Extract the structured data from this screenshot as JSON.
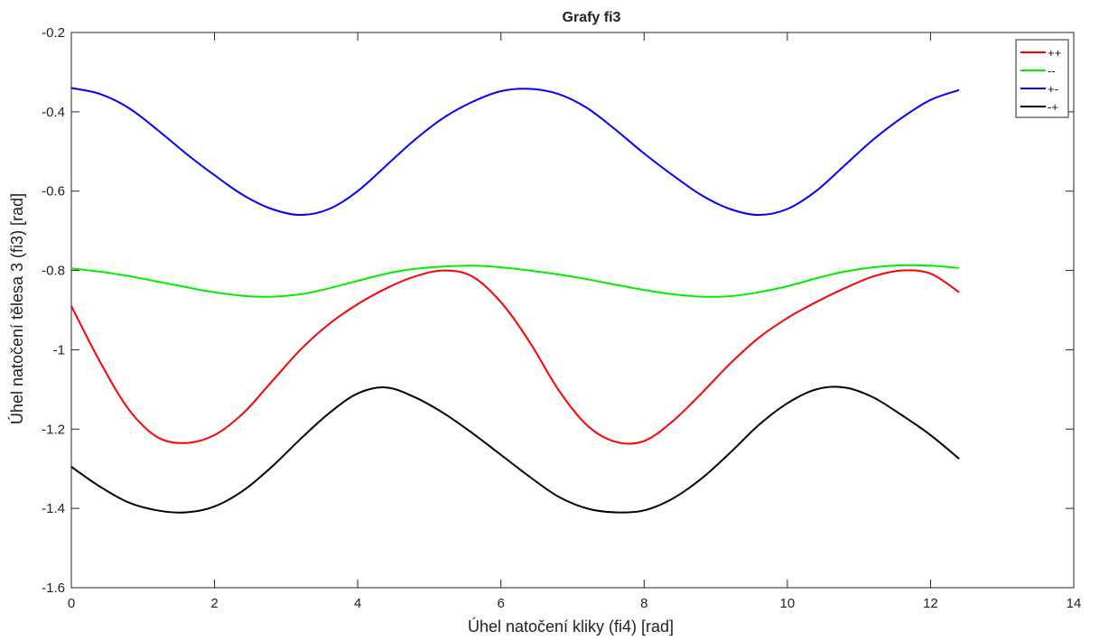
{
  "chart_data": {
    "type": "line",
    "title": "Grafy fi3",
    "xlabel": "Úhel natočení kliky (fi4) [rad]",
    "ylabel": "Úhel natočení tělesa 3 (fi3) [rad]",
    "xlim": [
      0,
      14
    ],
    "ylim": [
      -1.6,
      -0.2
    ],
    "xticks": [
      0,
      2,
      4,
      6,
      8,
      10,
      12,
      14
    ],
    "xtick_labels": [
      "0",
      "2",
      "4",
      "6",
      "8",
      "10",
      "12",
      "14"
    ],
    "yticks": [
      -1.6,
      -1.4,
      -1.2,
      -1.0,
      -0.8,
      -0.6,
      -0.4,
      -0.2
    ],
    "ytick_labels": [
      "-1.6",
      "-1.4",
      "-1.2",
      "-1",
      "-0.8",
      "-0.6",
      "-0.4",
      "-0.2"
    ],
    "grid": false,
    "legend_position": "top-right",
    "x": [
      0,
      0.4,
      0.8,
      1.2,
      1.6,
      2.0,
      2.4,
      2.8,
      3.2,
      3.6,
      4.0,
      4.4,
      4.8,
      5.2,
      5.6,
      6.0,
      6.4,
      6.8,
      7.2,
      7.6,
      8.0,
      8.4,
      8.8,
      9.2,
      9.6,
      10.0,
      10.4,
      10.8,
      11.2,
      11.6,
      12.0,
      12.4
    ],
    "series": [
      {
        "name": "++",
        "color": "#ff0000",
        "values": [
          -0.89,
          -1.03,
          -1.15,
          -1.22,
          -1.235,
          -1.215,
          -1.16,
          -1.08,
          -1.0,
          -0.935,
          -0.885,
          -0.845,
          -0.815,
          -0.8,
          -0.815,
          -0.88,
          -0.98,
          -1.1,
          -1.19,
          -1.232,
          -1.23,
          -1.18,
          -1.11,
          -1.035,
          -0.97,
          -0.92,
          -0.88,
          -0.845,
          -0.815,
          -0.8,
          -0.808,
          -0.855
        ]
      },
      {
        "name": "--",
        "color": "#00ee00",
        "values": [
          -0.795,
          -0.803,
          -0.814,
          -0.828,
          -0.842,
          -0.855,
          -0.864,
          -0.866,
          -0.86,
          -0.845,
          -0.826,
          -0.808,
          -0.796,
          -0.79,
          -0.788,
          -0.792,
          -0.8,
          -0.81,
          -0.822,
          -0.836,
          -0.849,
          -0.86,
          -0.866,
          -0.865,
          -0.855,
          -0.84,
          -0.82,
          -0.803,
          -0.792,
          -0.787,
          -0.788,
          -0.794
        ]
      },
      {
        "name": "+-",
        "color": "#0000ff",
        "values": [
          -0.34,
          -0.355,
          -0.39,
          -0.445,
          -0.505,
          -0.56,
          -0.61,
          -0.645,
          -0.66,
          -0.645,
          -0.6,
          -0.535,
          -0.47,
          -0.415,
          -0.375,
          -0.348,
          -0.342,
          -0.355,
          -0.39,
          -0.445,
          -0.505,
          -0.56,
          -0.61,
          -0.645,
          -0.66,
          -0.645,
          -0.6,
          -0.535,
          -0.47,
          -0.415,
          -0.37,
          -0.345
        ]
      },
      {
        "name": "-+",
        "color": "#000000",
        "values": [
          -1.295,
          -1.345,
          -1.385,
          -1.405,
          -1.41,
          -1.395,
          -1.355,
          -1.295,
          -1.225,
          -1.16,
          -1.11,
          -1.095,
          -1.12,
          -1.16,
          -1.21,
          -1.265,
          -1.32,
          -1.37,
          -1.4,
          -1.41,
          -1.405,
          -1.375,
          -1.325,
          -1.26,
          -1.19,
          -1.135,
          -1.1,
          -1.095,
          -1.12,
          -1.165,
          -1.215,
          -1.275
        ]
      }
    ]
  }
}
